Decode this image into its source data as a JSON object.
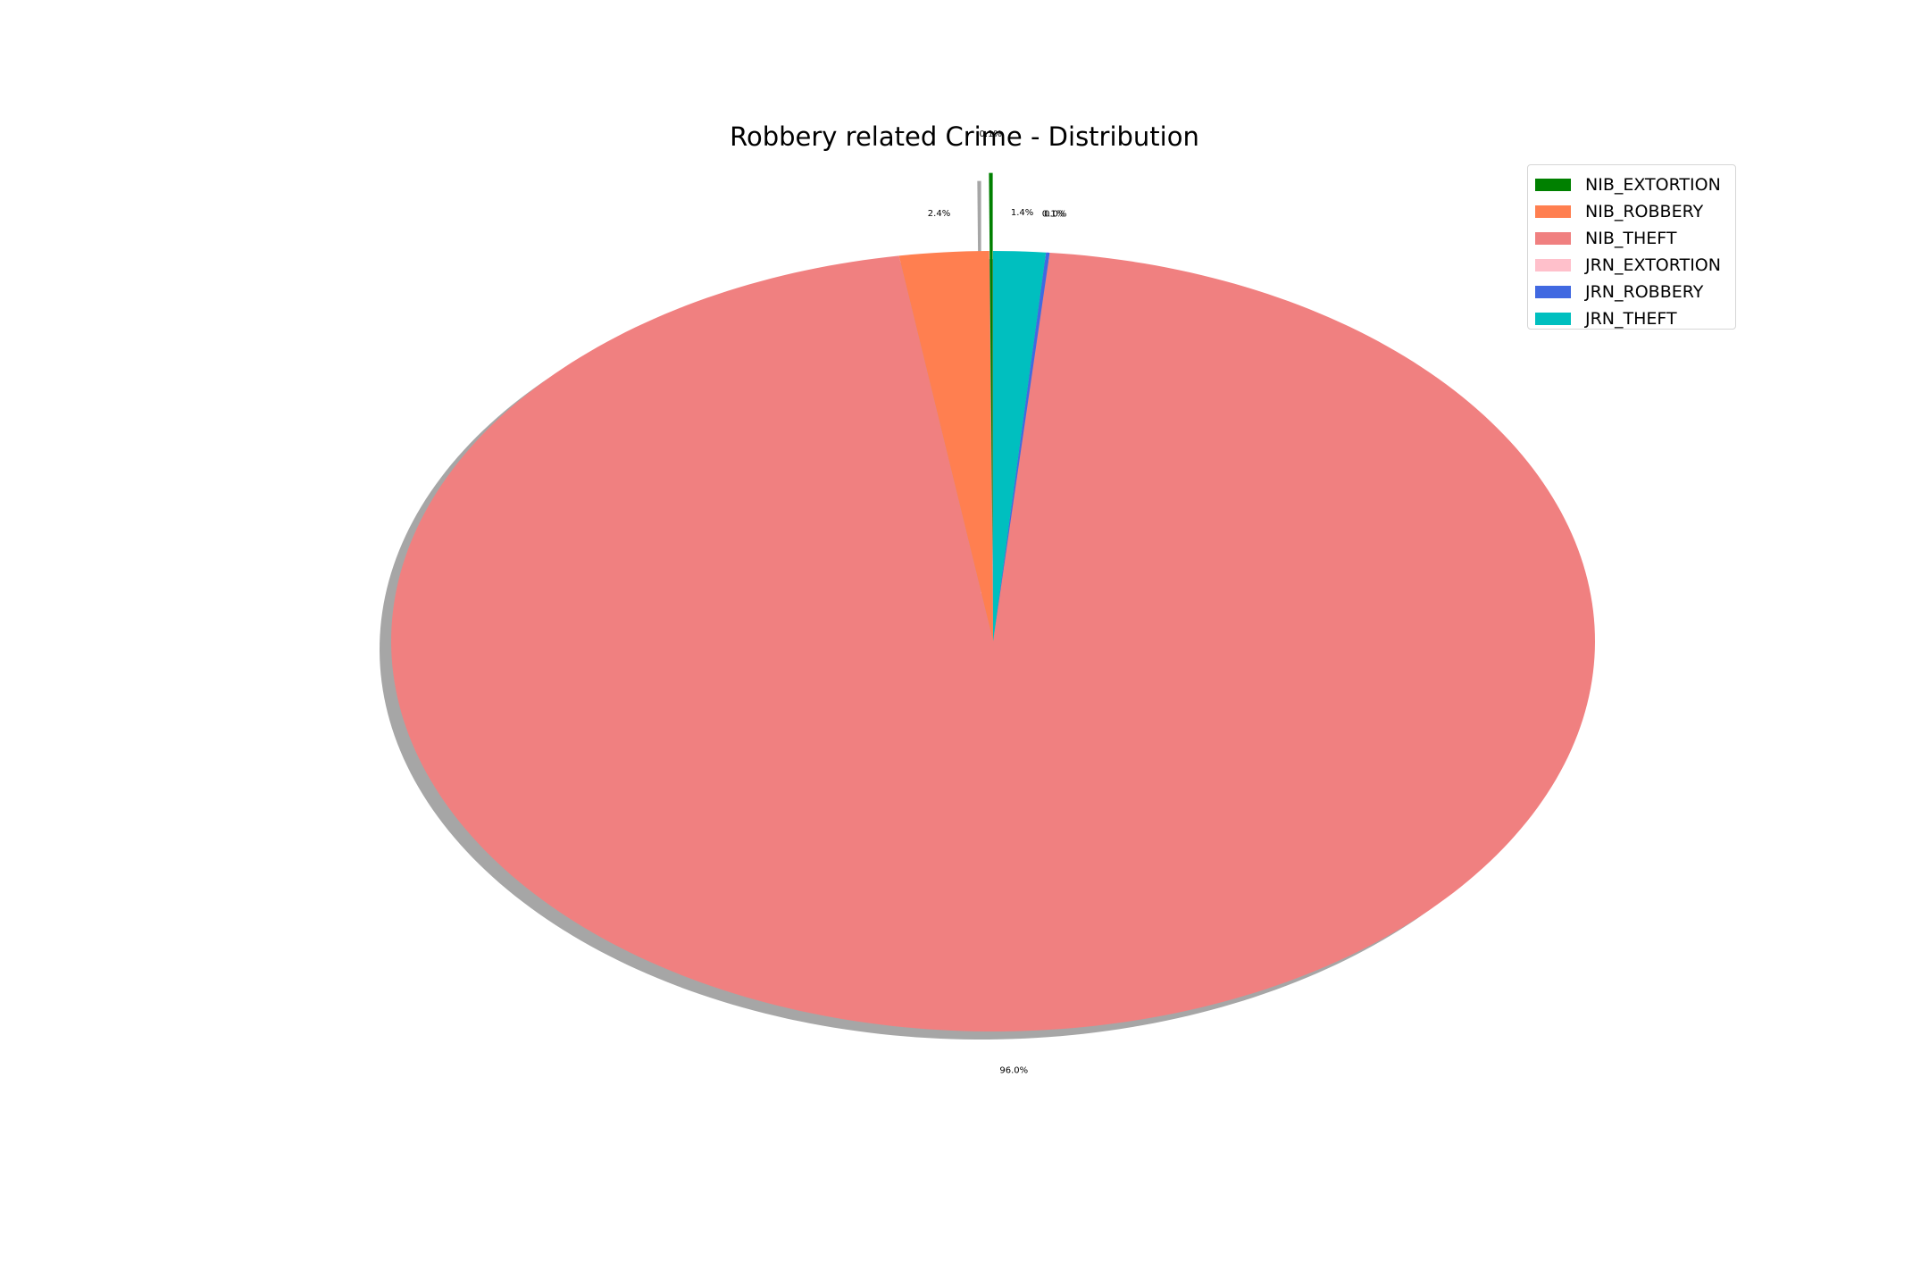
{
  "chart_data": {
    "type": "pie",
    "title": "Robbery related Crime - Distribution",
    "start_angle_deg": 90,
    "direction": "counterclockwise",
    "shadow": true,
    "explode": [
      0.2,
      0.0,
      0.0,
      0.0,
      0.0,
      0.0
    ],
    "legend_position": "upper right",
    "slices": [
      {
        "label": "NIB_EXTORTION",
        "value": 0.1,
        "pct_label": "0.1%",
        "color": "#008000"
      },
      {
        "label": "NIB_ROBBERY",
        "value": 2.4,
        "pct_label": "2.4%",
        "color": "#ff7f50"
      },
      {
        "label": "NIB_THEFT",
        "value": 96.0,
        "pct_label": "96.0%",
        "color": "#f08080"
      },
      {
        "label": "JRN_EXTORTION",
        "value": 0.0,
        "pct_label": "0.0%",
        "color": "#ffc0cb"
      },
      {
        "label": "JRN_ROBBERY",
        "value": 0.1,
        "pct_label": "0.1%",
        "color": "#4169e1"
      },
      {
        "label": "JRN_THEFT",
        "value": 1.4,
        "pct_label": "1.4%",
        "color": "#00bfbf"
      }
    ]
  }
}
